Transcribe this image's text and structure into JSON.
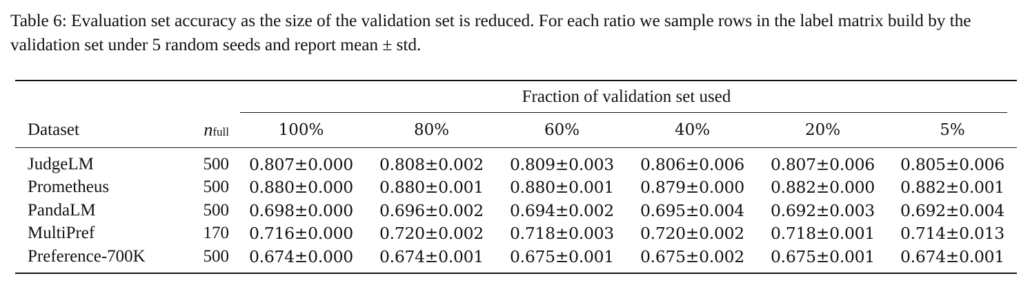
{
  "caption": "Table 6: Evaluation set accuracy as the size of the validation set is reduced. For each ratio we sample rows in the label matrix build by the validation set under 5 random seeds and report mean ± std.",
  "table": {
    "group_header": "Fraction of validation set used",
    "col_dataset": "Dataset",
    "col_n_italic": "n",
    "col_n_sub": "full",
    "fractions": [
      "100%",
      "80%",
      "60%",
      "40%",
      "20%",
      "5%"
    ],
    "rows": [
      {
        "dataset": "JudgeLM",
        "n": "500",
        "values": [
          "0.807±0.000",
          "0.808±0.002",
          "0.809±0.003",
          "0.806±0.006",
          "0.807±0.006",
          "0.805±0.006"
        ]
      },
      {
        "dataset": "Prometheus",
        "n": "500",
        "values": [
          "0.880±0.000",
          "0.880±0.001",
          "0.880±0.001",
          "0.879±0.000",
          "0.882±0.000",
          "0.882±0.001"
        ]
      },
      {
        "dataset": "PandaLM",
        "n": "500",
        "values": [
          "0.698±0.000",
          "0.696±0.002",
          "0.694±0.002",
          "0.695±0.004",
          "0.692±0.003",
          "0.692±0.004"
        ]
      },
      {
        "dataset": "MultiPref",
        "n": "170",
        "values": [
          "0.716±0.000",
          "0.720±0.002",
          "0.718±0.003",
          "0.720±0.002",
          "0.718±0.001",
          "0.714±0.013"
        ]
      },
      {
        "dataset": "Preference-700K",
        "n": "500",
        "values": [
          "0.674±0.000",
          "0.674±0.001",
          "0.675±0.001",
          "0.675±0.002",
          "0.675±0.001",
          "0.674±0.001"
        ]
      }
    ]
  }
}
